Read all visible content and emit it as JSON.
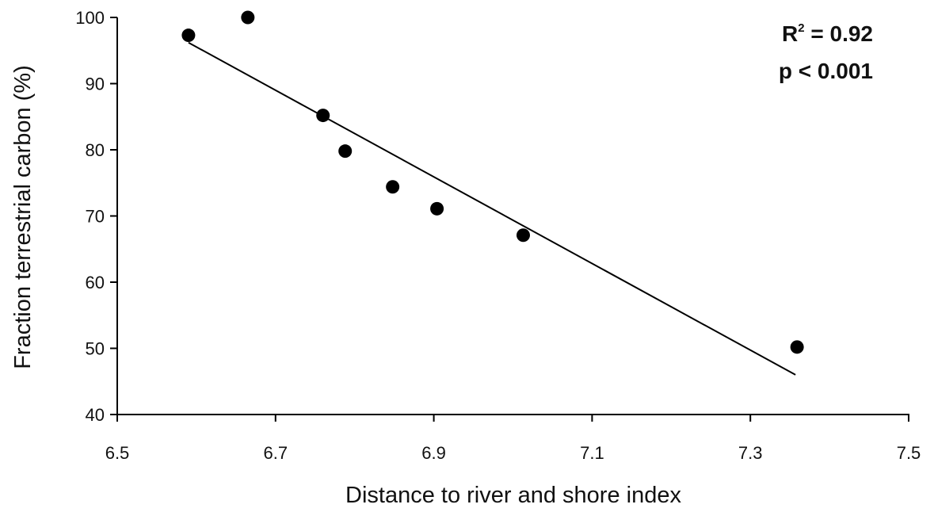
{
  "chart_data": {
    "type": "scatter",
    "title": "",
    "xlabel": "Distance to river and shore index",
    "ylabel": "Fraction terrestrial carbon (%)",
    "xlim": [
      6.5,
      7.5
    ],
    "ylim": [
      40,
      100
    ],
    "xticks": [
      "6.5",
      "6.7",
      "6.9",
      "7.1",
      "7.3",
      "7.5"
    ],
    "xtick_values": [
      6.5,
      6.7,
      6.9,
      7.1,
      7.3,
      7.5
    ],
    "yticks": [
      "40",
      "50",
      "60",
      "70",
      "80",
      "90",
      "100"
    ],
    "ytick_values": [
      40,
      50,
      60,
      70,
      80,
      90,
      100
    ],
    "grid": false,
    "series": [
      {
        "x": [
          6.59,
          6.665,
          6.76,
          6.788,
          6.848,
          6.904,
          7.013,
          7.359
        ],
        "y": [
          97.3,
          100,
          85.2,
          79.8,
          74.4,
          71.1,
          67.1,
          50.2
        ],
        "marker": "filled-circle",
        "color": "#000000"
      }
    ],
    "fit_line": {
      "x": [
        6.59,
        7.357
      ],
      "y": [
        96.2,
        46.0
      ],
      "color": "#000000"
    },
    "annotations": {
      "r2_label": "R",
      "r2_sup": "2",
      "r2_value": " = 0.92",
      "p_value": "p < 0.001"
    }
  }
}
